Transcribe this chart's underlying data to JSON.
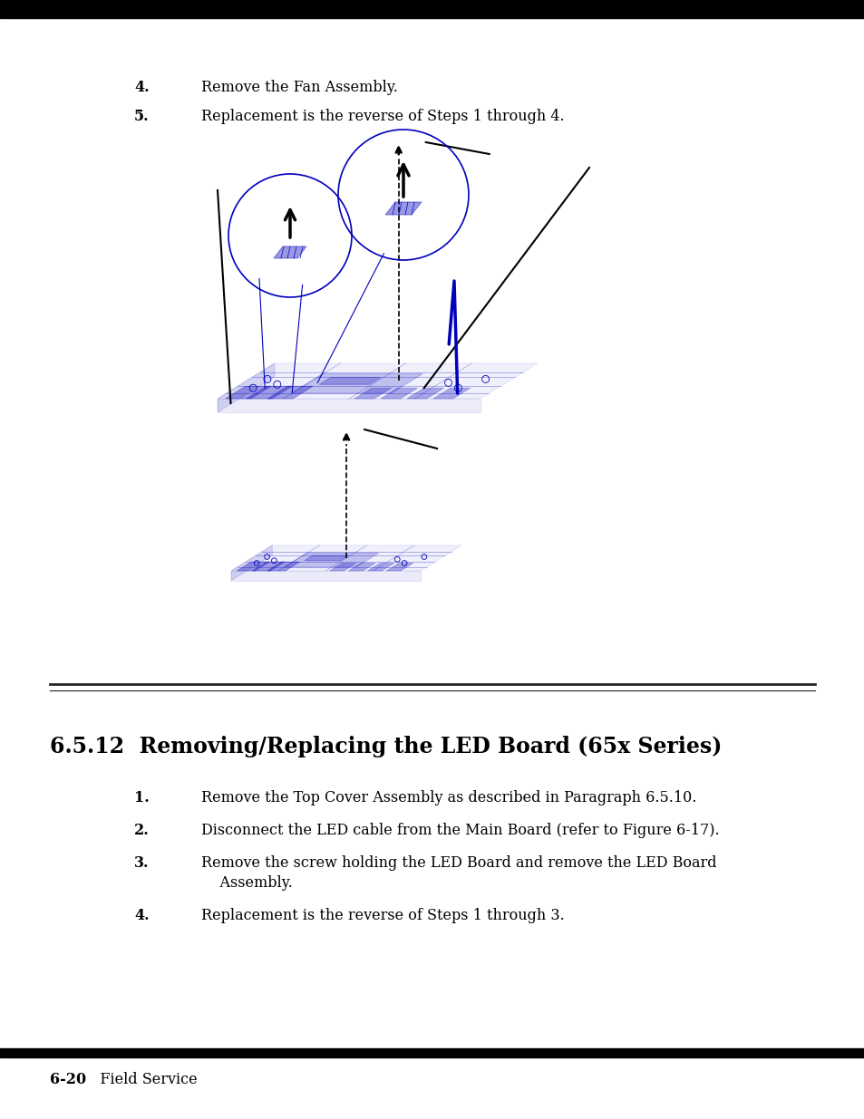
{
  "bg_color": "#ffffff",
  "top_bar_color": "#000000",
  "bottom_bar_color": "#000000",
  "text_color": "#000000",
  "diagram_color": "#0000bb",
  "black_color": "#000000",
  "step4_label": "4.",
  "step4_text": "Remove the Fan Assembly.",
  "step5_label": "5.",
  "step5_text": "Replacement is the reverse of Steps 1 through 4.",
  "section_title": "6.5.12  Removing/Replacing the LED Board (65x Series)",
  "section_step1_label": "1.",
  "section_step1_text": "Remove the Top Cover Assembly as described in Paragraph 6.5.10.",
  "section_step2_label": "2.",
  "section_step2_text": "Disconnect the LED cable from the Main Board (refer to Figure 6-17).",
  "section_step3_label": "3.",
  "section_step3_text_line1": "Remove the screw holding the LED Board and remove the LED Board",
  "section_step3_text_line2": "Assembly.",
  "section_step4_label": "4.",
  "section_step4_text": "Replacement is the reverse of Steps 1 through 3.",
  "footer_bold": "6-20",
  "footer_normal": "   Field Service"
}
